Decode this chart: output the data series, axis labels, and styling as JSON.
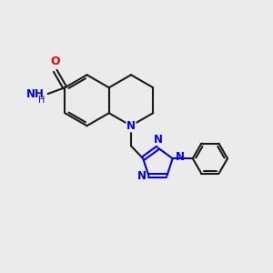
{
  "bg_color": "#ebebeb",
  "bond_color": "#1a1a1a",
  "n_color": "#0000ee",
  "o_color": "#ee0000",
  "nh2_color": "#4db8b8",
  "lw": 1.5,
  "figsize": [
    3.0,
    3.0
  ],
  "dpi": 100,
  "xlim": [
    0,
    10
  ],
  "ylim": [
    0,
    10
  ]
}
